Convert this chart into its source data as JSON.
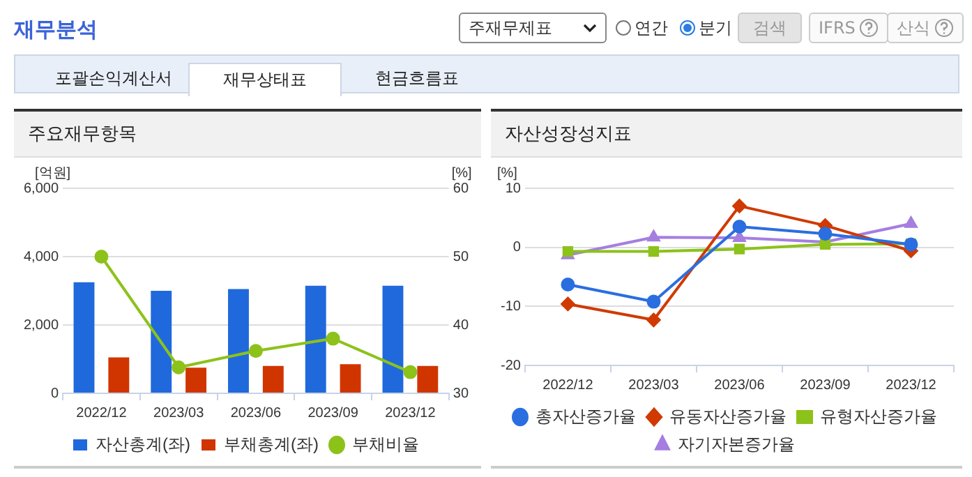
{
  "chart_data": [
    {
      "type": "other",
      "title": "재무분석",
      "annotations": [
        "주재무제표",
        "연간",
        "분기",
        "검색",
        "IFRS",
        "산식",
        "포괄손익계산서",
        "재무상태표",
        "현금흐름표"
      ]
    },
    {
      "type": "bar",
      "title": "주요재무항목",
      "categories": [
        "2022/12",
        "2023/03",
        "2023/06",
        "2023/09",
        "2023/12"
      ],
      "series": [
        {
          "name": "자산총계(좌)",
          "color": "#2069dc",
          "values": [
            3250,
            3000,
            3050,
            3150,
            3150
          ]
        },
        {
          "name": "부채총계(좌)",
          "color": "#d03500",
          "values": [
            1050,
            750,
            800,
            850,
            800
          ]
        },
        {
          "name": "부채비율",
          "type": "line",
          "axis": "y2",
          "color": "#8cc21a",
          "marker": "circle",
          "values": [
            50,
            33.8,
            36.2,
            38,
            33.1
          ]
        }
      ],
      "ylabel": "[억원]",
      "y2label": "[%]",
      "ylim": [
        0,
        6000
      ],
      "yticks": [
        0,
        {
          "value": 2000,
          "label": "2,000"
        },
        {
          "value": 4000,
          "label": "4,000"
        },
        {
          "value": 6000,
          "label": "6,000"
        }
      ],
      "y2lim": [
        30,
        60
      ],
      "y2ticks": [
        30,
        40,
        50,
        60
      ],
      "grid": "y",
      "legend": "bottom"
    },
    {
      "type": "line",
      "title": "자산성장성지표",
      "categories": [
        "2022/12",
        "2023/03",
        "2023/06",
        "2023/09",
        "2023/12"
      ],
      "series": [
        {
          "name": "총자산증가율",
          "color": "#2a6ee0",
          "marker": "circle",
          "values": [
            -6.3,
            -9.2,
            3.5,
            2.3,
            0.5
          ]
        },
        {
          "name": "유동자산증가율",
          "color": "#d03a00",
          "marker": "diamond",
          "values": [
            -9.6,
            -12.3,
            7.0,
            3.7,
            -0.6
          ]
        },
        {
          "name": "유형자산증가율",
          "color": "#8cc21a",
          "marker": "square",
          "values": [
            -0.7,
            -0.7,
            -0.3,
            0.5,
            0.6
          ]
        },
        {
          "name": "자기자본증가율",
          "color": "#a57ee0",
          "marker": "triangle",
          "values": [
            -1.3,
            1.7,
            1.6,
            0.9,
            4.0
          ]
        }
      ],
      "ylabel": "[%]",
      "ylim": [
        -20,
        10
      ],
      "yticks": [
        -20,
        -10,
        0,
        10
      ],
      "grid": "y",
      "legend": "bottom"
    }
  ]
}
